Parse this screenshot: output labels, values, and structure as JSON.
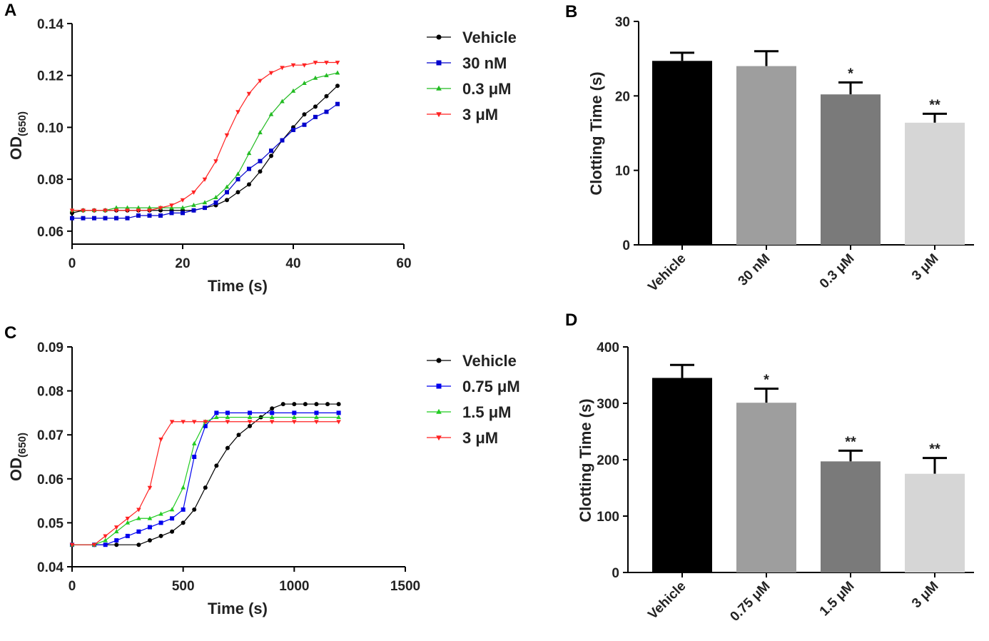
{
  "chart_data": [
    {
      "panel": "A",
      "type": "line",
      "xlabel": "Time (s)",
      "ylabel": "OD",
      "ylabel_sub": "(650)",
      "xlim": [
        0,
        60
      ],
      "ylim": [
        0.055,
        0.14
      ],
      "xticks": [
        0,
        20,
        40,
        60
      ],
      "yticks": [
        0.06,
        0.08,
        0.1,
        0.12,
        0.14
      ],
      "ytick_labels": [
        "0.06",
        "0.08",
        "0.10",
        "0.12",
        "0.14"
      ],
      "series": [
        {
          "name": "Vehicle",
          "color": "#000000",
          "marker": "circle",
          "x": [
            0,
            2,
            4,
            6,
            8,
            10,
            12,
            14,
            16,
            18,
            20,
            22,
            24,
            26,
            28,
            30,
            32,
            34,
            36,
            38,
            40,
            42,
            44,
            46,
            48
          ],
          "y": [
            0.067,
            0.068,
            0.068,
            0.068,
            0.068,
            0.068,
            0.068,
            0.068,
            0.068,
            0.068,
            0.068,
            0.068,
            0.069,
            0.07,
            0.072,
            0.075,
            0.078,
            0.083,
            0.089,
            0.095,
            0.1,
            0.105,
            0.108,
            0.112,
            0.116
          ]
        },
        {
          "name": "30 nM",
          "color": "#0000cc",
          "marker": "square",
          "x": [
            0,
            2,
            4,
            6,
            8,
            10,
            12,
            14,
            16,
            18,
            20,
            22,
            24,
            26,
            28,
            30,
            32,
            34,
            36,
            38,
            40,
            42,
            44,
            46,
            48
          ],
          "y": [
            0.065,
            0.065,
            0.065,
            0.065,
            0.065,
            0.065,
            0.066,
            0.066,
            0.066,
            0.067,
            0.067,
            0.068,
            0.069,
            0.071,
            0.075,
            0.08,
            0.084,
            0.087,
            0.091,
            0.095,
            0.099,
            0.101,
            0.104,
            0.106,
            0.109
          ]
        },
        {
          "name": "0.3 μM",
          "color": "#22bb22",
          "marker": "triangle-up",
          "x": [
            0,
            2,
            4,
            6,
            8,
            10,
            12,
            14,
            16,
            18,
            20,
            22,
            24,
            26,
            28,
            30,
            32,
            34,
            36,
            38,
            40,
            42,
            44,
            46,
            48
          ],
          "y": [
            0.068,
            0.068,
            0.068,
            0.068,
            0.069,
            0.069,
            0.069,
            0.069,
            0.069,
            0.069,
            0.069,
            0.07,
            0.071,
            0.073,
            0.077,
            0.082,
            0.09,
            0.098,
            0.105,
            0.11,
            0.114,
            0.117,
            0.119,
            0.12,
            0.121
          ]
        },
        {
          "name": "3 μM",
          "color": "#ff2222",
          "marker": "triangle-down",
          "x": [
            0,
            2,
            4,
            6,
            8,
            10,
            12,
            14,
            16,
            18,
            20,
            22,
            24,
            26,
            28,
            30,
            32,
            34,
            36,
            38,
            40,
            42,
            44,
            46,
            48
          ],
          "y": [
            0.068,
            0.068,
            0.068,
            0.068,
            0.068,
            0.068,
            0.068,
            0.068,
            0.069,
            0.07,
            0.072,
            0.075,
            0.08,
            0.087,
            0.097,
            0.106,
            0.113,
            0.118,
            0.121,
            0.123,
            0.124,
            0.124,
            0.125,
            0.125,
            0.125
          ]
        }
      ]
    },
    {
      "panel": "B",
      "type": "bar",
      "ylabel": "Clotting Time (s)",
      "ylim": [
        0,
        30
      ],
      "yticks": [
        0,
        10,
        20,
        30
      ],
      "categories": [
        "Vehicle",
        "30 nM",
        "0.3 μM",
        "3 μM"
      ],
      "values": [
        24.7,
        24.0,
        20.2,
        16.4
      ],
      "errors": [
        1.1,
        2.0,
        1.6,
        1.2
      ],
      "colors": [
        "#000000",
        "#9e9e9e",
        "#7a7a7a",
        "#d6d6d6"
      ],
      "annotations": [
        "",
        "",
        "*",
        "**"
      ]
    },
    {
      "panel": "C",
      "type": "line",
      "xlabel": "Time (s)",
      "ylabel": "OD",
      "ylabel_sub": "(650)",
      "xlim": [
        0,
        1500
      ],
      "ylim": [
        0.04,
        0.09
      ],
      "xticks": [
        0,
        500,
        1000,
        1500
      ],
      "yticks": [
        0.04,
        0.05,
        0.06,
        0.07,
        0.08,
        0.09
      ],
      "ytick_labels": [
        "0.04",
        "0.05",
        "0.06",
        "0.07",
        "0.08",
        "0.09"
      ],
      "series": [
        {
          "name": "Vehicle",
          "color": "#000000",
          "marker": "circle",
          "x": [
            0,
            100,
            200,
            300,
            350,
            400,
            450,
            500,
            550,
            600,
            650,
            700,
            750,
            800,
            850,
            900,
            950,
            1000,
            1050,
            1100,
            1150,
            1200
          ],
          "y": [
            0.045,
            0.045,
            0.045,
            0.045,
            0.046,
            0.047,
            0.048,
            0.05,
            0.053,
            0.058,
            0.063,
            0.067,
            0.07,
            0.072,
            0.074,
            0.076,
            0.077,
            0.077,
            0.077,
            0.077,
            0.077,
            0.077
          ]
        },
        {
          "name": "0.75 μM",
          "color": "#0000ee",
          "marker": "square",
          "x": [
            0,
            100,
            150,
            200,
            250,
            300,
            350,
            400,
            450,
            500,
            550,
            600,
            650,
            700,
            800,
            900,
            1000,
            1100,
            1200
          ],
          "y": [
            0.045,
            0.045,
            0.045,
            0.046,
            0.047,
            0.048,
            0.049,
            0.05,
            0.051,
            0.053,
            0.065,
            0.072,
            0.075,
            0.075,
            0.075,
            0.075,
            0.075,
            0.075,
            0.075
          ]
        },
        {
          "name": "1.5 μM",
          "color": "#22cc22",
          "marker": "triangle-up",
          "x": [
            0,
            100,
            150,
            200,
            250,
            300,
            350,
            400,
            450,
            500,
            550,
            600,
            650,
            700,
            800,
            900,
            1000,
            1100,
            1200
          ],
          "y": [
            0.045,
            0.045,
            0.046,
            0.048,
            0.05,
            0.051,
            0.051,
            0.052,
            0.053,
            0.058,
            0.068,
            0.073,
            0.074,
            0.074,
            0.074,
            0.074,
            0.074,
            0.074,
            0.074
          ]
        },
        {
          "name": "3 μM",
          "color": "#ff2222",
          "marker": "triangle-down",
          "x": [
            0,
            100,
            150,
            200,
            250,
            300,
            350,
            400,
            450,
            500,
            550,
            600,
            700,
            800,
            900,
            1000,
            1100,
            1200
          ],
          "y": [
            0.045,
            0.045,
            0.047,
            0.049,
            0.051,
            0.053,
            0.058,
            0.069,
            0.073,
            0.073,
            0.073,
            0.073,
            0.073,
            0.073,
            0.073,
            0.073,
            0.073,
            0.073
          ]
        }
      ]
    },
    {
      "panel": "D",
      "type": "bar",
      "ylabel": "Clotting Time (s)",
      "ylim": [
        0,
        400
      ],
      "yticks": [
        0,
        100,
        200,
        300,
        400
      ],
      "categories": [
        "Vehicle",
        "0.75 μM",
        "1.5 μM",
        "3 μM"
      ],
      "values": [
        345,
        301,
        197,
        175
      ],
      "errors": [
        23,
        25,
        19,
        28
      ],
      "colors": [
        "#000000",
        "#9e9e9e",
        "#7a7a7a",
        "#d6d6d6"
      ],
      "annotations": [
        "",
        "*",
        "**",
        "**"
      ]
    }
  ]
}
